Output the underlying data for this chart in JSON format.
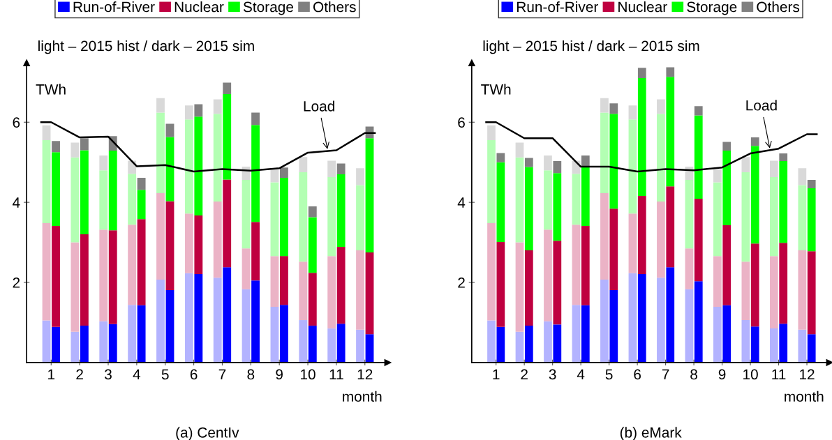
{
  "chart_data": [
    {
      "type": "bar",
      "stacked": true,
      "title": "(a) CentIv",
      "subtitle": "light – 2015 hist / dark – 2015 sim",
      "xlabel": "month",
      "ylabel": "TWh",
      "x": [
        0.835,
        1.165,
        1.835,
        2.165,
        2.835,
        3.165,
        3.835,
        4.165,
        4.835,
        5.165,
        5.835,
        6.165,
        6.835,
        7.165,
        7.835,
        8.165,
        8.835,
        9.165,
        9.835,
        10.165,
        10.835,
        11.165,
        11.835,
        12.165
      ],
      "xlim": [
        0.14,
        12.8
      ],
      "xticks": [
        1,
        2,
        3,
        4,
        5,
        6,
        7,
        8,
        9,
        10,
        11,
        12
      ],
      "ylim": [
        0,
        7.48
      ],
      "yticks": [
        2,
        4,
        6
      ],
      "grid": false,
      "legend": "top",
      "annotations": [
        {
          "text": "Load",
          "x": 10.7,
          "y": 5.28
        }
      ],
      "series": [
        {
          "color": "#b3b3ff",
          "values": [
            1.05,
            null,
            0.77,
            null,
            1.03,
            null,
            1.44,
            null,
            2.07,
            null,
            2.23,
            null,
            2.12,
            null,
            1.83,
            null,
            1.39,
            null,
            1.06,
            null,
            0.85,
            null,
            0.82,
            null
          ]
        },
        {
          "color": "#ebb3c6",
          "values": [
            2.43,
            null,
            2.23,
            null,
            2.29,
            null,
            2.0,
            null,
            2.16,
            null,
            1.49,
            null,
            1.9,
            null,
            1.02,
            null,
            1.27,
            null,
            1.46,
            null,
            1.81,
            null,
            1.98,
            null
          ]
        },
        {
          "color": "#b3ffb3",
          "values": [
            2.07,
            null,
            2.12,
            null,
            1.48,
            null,
            1.27,
            null,
            2.01,
            null,
            2.35,
            null,
            2.19,
            null,
            1.71,
            null,
            1.84,
            null,
            2.23,
            null,
            1.97,
            null,
            1.63,
            null
          ]
        },
        {
          "color": "#d9d9d9",
          "values": [
            0.37,
            null,
            0.37,
            null,
            0.37,
            null,
            0.33,
            null,
            0.36,
            null,
            0.35,
            null,
            0.36,
            null,
            0.33,
            null,
            0.32,
            null,
            0.38,
            null,
            0.41,
            null,
            0.42,
            null
          ]
        },
        {
          "name": "Run-of-River",
          "color": "#0000ff",
          "values": [
            null,
            0.89,
            null,
            0.92,
            null,
            0.96,
            null,
            1.43,
            null,
            1.81,
            null,
            2.21,
            null,
            2.38,
            null,
            2.05,
            null,
            1.44,
            null,
            0.92,
            null,
            0.97,
            null,
            0.71
          ]
        },
        {
          "name": "Nuclear",
          "color": "#bf0040",
          "values": [
            null,
            2.52,
            null,
            2.28,
            null,
            2.34,
            null,
            2.15,
            null,
            2.22,
            null,
            1.46,
            null,
            2.19,
            null,
            1.46,
            null,
            1.22,
            null,
            1.32,
            null,
            1.92,
            null,
            2.04
          ]
        },
        {
          "name": "Storage",
          "color": "#00ff00",
          "values": [
            null,
            1.84,
            null,
            2.1,
            null,
            1.99,
            null,
            0.73,
            null,
            1.6,
            null,
            2.47,
            null,
            2.13,
            null,
            2.42,
            null,
            1.95,
            null,
            1.39,
            null,
            1.81,
            null,
            2.85
          ]
        },
        {
          "name": "Others",
          "color": "#808080",
          "values": [
            null,
            0.28,
            null,
            0.3,
            null,
            0.36,
            null,
            0.3,
            null,
            0.33,
            null,
            0.31,
            null,
            0.29,
            null,
            0.31,
            null,
            0.26,
            null,
            0.27,
            null,
            0.27,
            null,
            0.29
          ]
        },
        {
          "type": "line",
          "color": "#000000",
          "x": [
            0.65,
            1,
            2,
            3,
            4,
            5,
            6,
            7,
            8,
            9,
            10,
            11,
            12,
            12.35
          ],
          "values": [
            6.0,
            6.0,
            5.62,
            5.64,
            4.9,
            4.93,
            4.77,
            4.83,
            4.79,
            4.85,
            5.24,
            5.3,
            5.73,
            5.73
          ]
        }
      ]
    },
    {
      "type": "bar",
      "stacked": true,
      "title": "(b) eMark",
      "subtitle": "light – 2015 hist / dark – 2015 sim",
      "xlabel": "month",
      "ylabel": "TWh",
      "x": [
        0.835,
        1.165,
        1.835,
        2.165,
        2.835,
        3.165,
        3.835,
        4.165,
        4.835,
        5.165,
        5.835,
        6.165,
        6.835,
        7.165,
        7.835,
        8.165,
        8.835,
        9.165,
        9.835,
        10.165,
        10.835,
        11.165,
        11.835,
        12.165
      ],
      "xlim": [
        0.14,
        12.8
      ],
      "xticks": [
        1,
        2,
        3,
        4,
        5,
        6,
        7,
        8,
        9,
        10,
        11,
        12
      ],
      "ylim": [
        0,
        7.48
      ],
      "yticks": [
        2,
        4,
        6
      ],
      "grid": false,
      "legend": "top",
      "annotations": [
        {
          "text": "Load",
          "x": 10.7,
          "y": 5.3
        }
      ],
      "series": [
        {
          "color": "#b3b3ff",
          "values": [
            1.05,
            null,
            0.77,
            null,
            1.03,
            null,
            1.44,
            null,
            2.07,
            null,
            2.23,
            null,
            2.12,
            null,
            1.83,
            null,
            1.39,
            null,
            1.06,
            null,
            0.85,
            null,
            0.82,
            null
          ]
        },
        {
          "color": "#ebb3c6",
          "values": [
            2.43,
            null,
            2.23,
            null,
            2.29,
            null,
            2.0,
            null,
            2.16,
            null,
            1.49,
            null,
            1.9,
            null,
            1.02,
            null,
            1.27,
            null,
            1.46,
            null,
            1.81,
            null,
            1.98,
            null
          ]
        },
        {
          "color": "#b3ffb3",
          "values": [
            2.07,
            null,
            2.12,
            null,
            1.48,
            null,
            1.27,
            null,
            2.01,
            null,
            2.35,
            null,
            2.19,
            null,
            1.71,
            null,
            1.84,
            null,
            2.23,
            null,
            1.97,
            null,
            1.63,
            null
          ]
        },
        {
          "color": "#d9d9d9",
          "values": [
            0.37,
            null,
            0.37,
            null,
            0.37,
            null,
            0.33,
            null,
            0.36,
            null,
            0.35,
            null,
            0.36,
            null,
            0.33,
            null,
            0.32,
            null,
            0.38,
            null,
            0.41,
            null,
            0.42,
            null
          ]
        },
        {
          "name": "Run-of-River",
          "color": "#0000ff",
          "values": [
            null,
            0.89,
            null,
            0.92,
            null,
            0.95,
            null,
            1.43,
            null,
            1.81,
            null,
            2.21,
            null,
            2.38,
            null,
            2.03,
            null,
            1.43,
            null,
            0.9,
            null,
            0.97,
            null,
            0.71
          ]
        },
        {
          "name": "Nuclear",
          "color": "#bf0040",
          "values": [
            null,
            2.12,
            null,
            1.88,
            null,
            2.09,
            null,
            1.98,
            null,
            2.03,
            null,
            1.95,
            null,
            2.02,
            null,
            2.06,
            null,
            2.0,
            null,
            2.07,
            null,
            2.02,
            null,
            2.07
          ]
        },
        {
          "name": "Storage",
          "color": "#00ff00",
          "values": [
            null,
            1.99,
            null,
            2.08,
            null,
            1.69,
            null,
            1.49,
            null,
            2.37,
            null,
            2.94,
            null,
            2.73,
            null,
            2.08,
            null,
            1.86,
            null,
            2.44,
            null,
            2.04,
            null,
            1.57
          ]
        },
        {
          "name": "Others",
          "color": "#808080",
          "values": [
            null,
            0.23,
            null,
            0.23,
            null,
            0.3,
            null,
            0.27,
            null,
            0.26,
            null,
            0.26,
            null,
            0.24,
            null,
            0.23,
            null,
            0.22,
            null,
            0.21,
            null,
            0.19,
            null,
            0.21
          ]
        },
        {
          "type": "line",
          "color": "#000000",
          "x": [
            0.65,
            1,
            2,
            3,
            4,
            5,
            6,
            7,
            8,
            9,
            10,
            11,
            12,
            12.35
          ],
          "values": [
            6.0,
            6.0,
            5.6,
            5.6,
            4.89,
            4.89,
            4.77,
            4.83,
            4.8,
            4.87,
            5.22,
            5.34,
            5.7,
            5.7
          ]
        }
      ]
    }
  ]
}
